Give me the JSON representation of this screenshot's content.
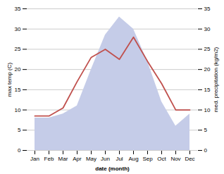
{
  "chart_data": {
    "type": "line",
    "categories": [
      "Jan",
      "Feb",
      "Mar",
      "Apr",
      "May",
      "Jun",
      "Jul",
      "Aug",
      "Sep",
      "Oct",
      "Nov",
      "Dec"
    ],
    "series": [
      {
        "type": "area",
        "color": "#c5cce8",
        "axis": "y2",
        "values": [
          8.0,
          8.0,
          9.0,
          11.0,
          20.0,
          28.5,
          33.0,
          30.0,
          22.0,
          12.0,
          6.0,
          9.0
        ]
      },
      {
        "type": "line",
        "color": "#c0504d",
        "values": [
          8.5,
          8.5,
          10.5,
          17.0,
          23.0,
          25.0,
          22.5,
          28.0,
          22.0,
          16.5,
          10.0,
          10.0
        ]
      }
    ],
    "xlabel": "date (month)",
    "ylabel": "max temp (C)",
    "y2label": "med. precipitation (kg/m2)",
    "ylim": [
      0,
      35
    ],
    "yticks": [
      0,
      5,
      10,
      15,
      20,
      25,
      30,
      35
    ],
    "y2lim": [
      0,
      35
    ],
    "y2ticks": [
      0,
      5,
      10,
      15,
      20,
      25,
      30,
      35
    ],
    "grid": true
  }
}
